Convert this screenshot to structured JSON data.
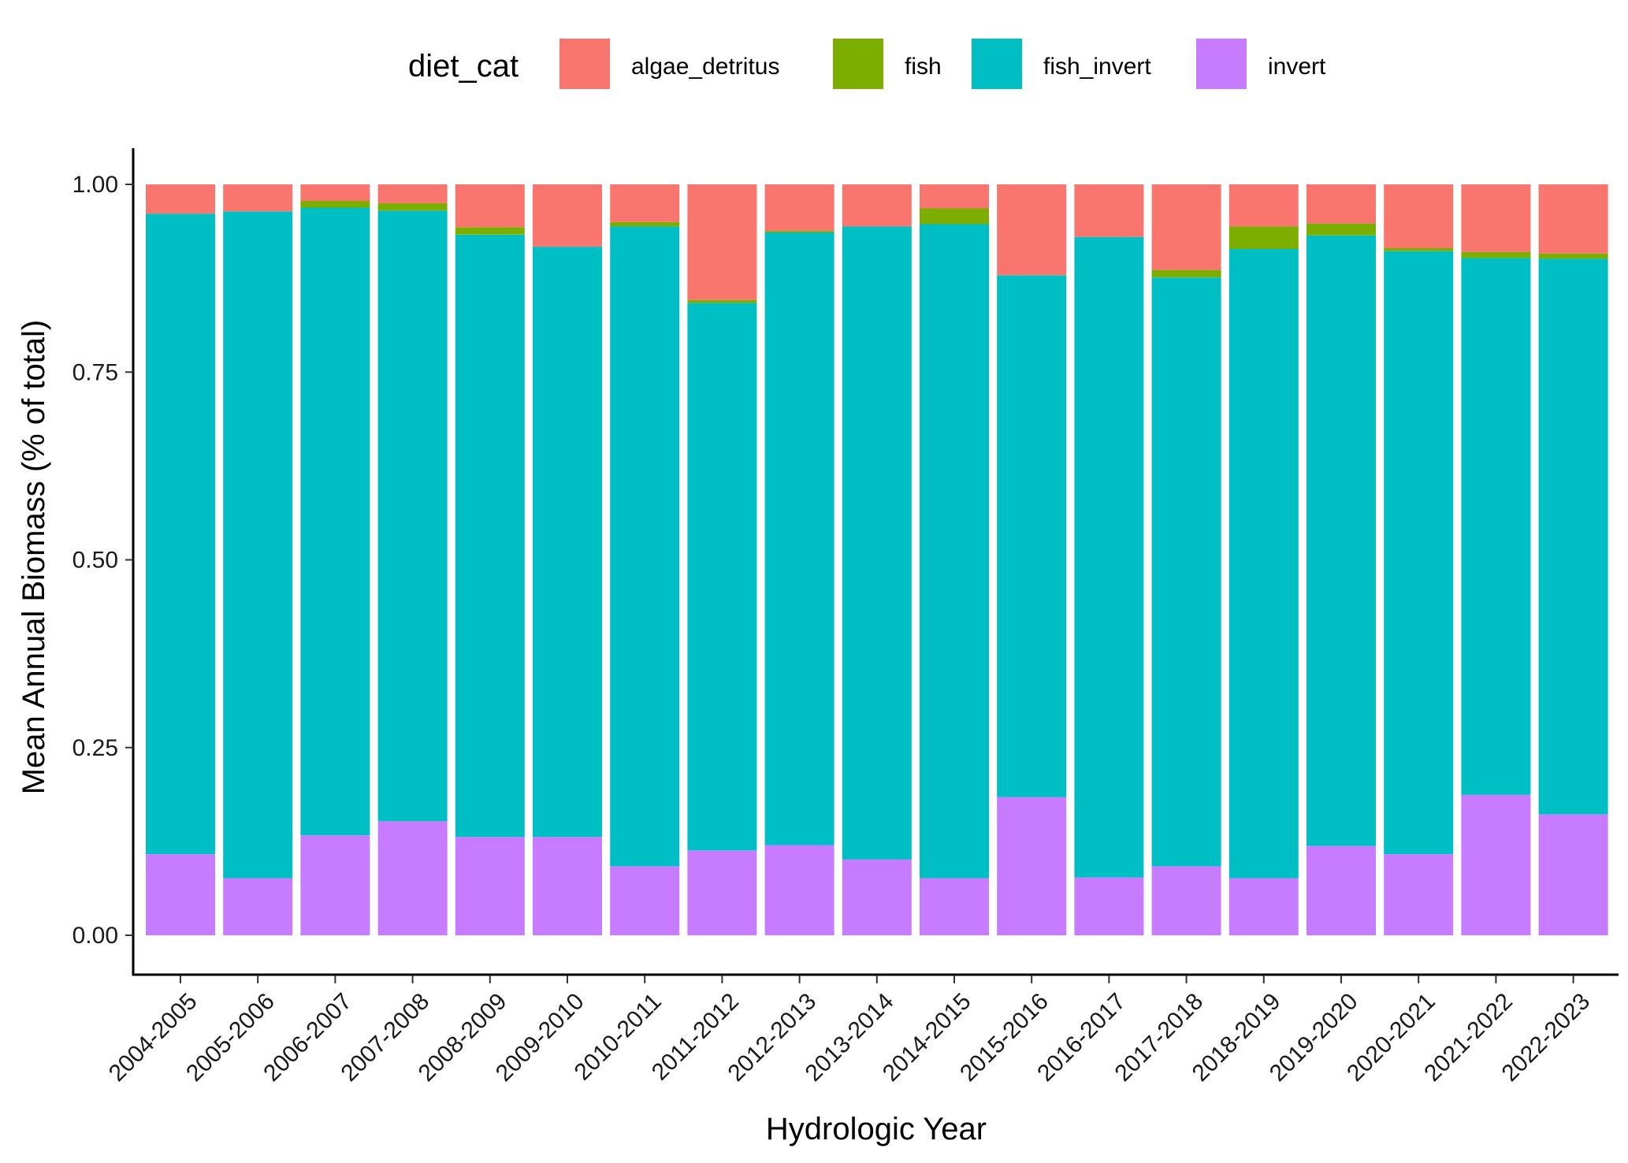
{
  "chart_data": {
    "type": "bar",
    "stacked": true,
    "title": "",
    "xlabel": "Hydrologic Year",
    "ylabel": "Mean Annual Biomass (% of total)",
    "ylim": [
      0,
      1
    ],
    "yticks": [
      "0.00",
      "0.25",
      "0.50",
      "0.75",
      "1.00"
    ],
    "ytick_values": [
      0,
      0.25,
      0.5,
      0.75,
      1.0
    ],
    "grid": false,
    "legend": {
      "title": "diet_cat",
      "placement": "top"
    },
    "categories": [
      "2004-2005",
      "2005-2006",
      "2006-2007",
      "2007-2008",
      "2008-2009",
      "2009-2010",
      "2010-2011",
      "2011-2012",
      "2012-2013",
      "2013-2014",
      "2014-2015",
      "2015-2016",
      "2016-2017",
      "2017-2018",
      "2018-2019",
      "2019-2020",
      "2020-2021",
      "2021-2022",
      "2022-2023"
    ],
    "stack_order_bottom_to_top": [
      "invert",
      "fish_invert",
      "fish",
      "algae_detritus"
    ],
    "series": [
      {
        "name": "algae_detritus",
        "color": "#F8766D",
        "values": [
          0.039,
          0.036,
          0.022,
          0.025,
          0.057,
          0.083,
          0.05,
          0.154,
          0.062,
          0.056,
          0.032,
          0.121,
          0.07,
          0.114,
          0.056,
          0.052,
          0.085,
          0.09,
          0.092
        ]
      },
      {
        "name": "fish",
        "color": "#7CAE00",
        "values": [
          0.0,
          0.0,
          0.009,
          0.01,
          0.01,
          0.0,
          0.006,
          0.004,
          0.002,
          0.0,
          0.021,
          0.0,
          0.0,
          0.01,
          0.03,
          0.016,
          0.004,
          0.008,
          0.007
        ]
      },
      {
        "name": "fish_invert",
        "color": "#00BFC4",
        "values": [
          0.853,
          0.888,
          0.836,
          0.813,
          0.802,
          0.786,
          0.852,
          0.729,
          0.816,
          0.843,
          0.871,
          0.695,
          0.853,
          0.784,
          0.838,
          0.813,
          0.803,
          0.715,
          0.74
        ]
      },
      {
        "name": "invert",
        "color": "#C77CFF",
        "values": [
          0.108,
          0.076,
          0.133,
          0.152,
          0.131,
          0.131,
          0.092,
          0.113,
          0.12,
          0.101,
          0.076,
          0.184,
          0.077,
          0.092,
          0.076,
          0.119,
          0.108,
          0.187,
          0.161
        ]
      }
    ]
  }
}
